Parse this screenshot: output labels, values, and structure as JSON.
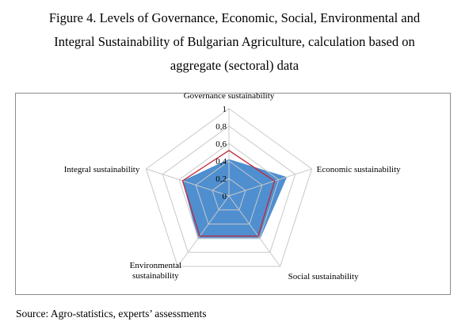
{
  "caption": {
    "line1": "Figure 4. Levels of Governance, Economic, Social, Environmental and",
    "line2": "Integral Sustainability of Bulgarian Agriculture, calculation based on",
    "line3": "aggregate (sectoral) data"
  },
  "source": "Source: Agro-statistics, experts’ assessments",
  "chart_data": {
    "type": "radar",
    "axes": [
      {
        "label_lines": [
          "Governance sustainability"
        ]
      },
      {
        "label_lines": [
          "Economic sustainability"
        ]
      },
      {
        "label_lines": [
          "Social sustainability"
        ]
      },
      {
        "label_lines": [
          "Environmental",
          "sustainability"
        ]
      },
      {
        "label_lines": [
          "Integral sustainability"
        ]
      }
    ],
    "radial_ticks": [
      "0",
      "0,2",
      "0,4",
      "0,6",
      "0,8",
      "1"
    ],
    "range": [
      0,
      1
    ],
    "grid": true,
    "series": [
      {
        "style": "filled-area",
        "color": "#4f8fd0",
        "values": [
          0.42,
          0.7,
          0.61,
          0.61,
          0.56
        ]
      },
      {
        "style": "line",
        "color": "#c0283a",
        "values": [
          0.52,
          0.55,
          0.57,
          0.57,
          0.56
        ]
      }
    ]
  }
}
